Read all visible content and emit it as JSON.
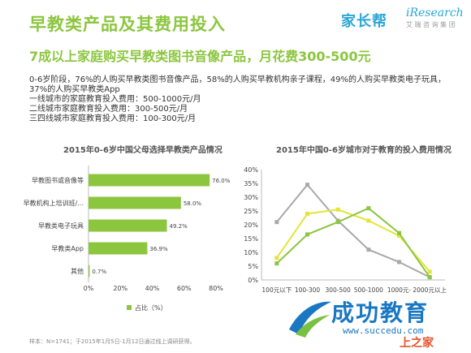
{
  "header": {
    "title": "早教类产品及其费用投入",
    "subtitle": "7成以上家庭购买早教类图书音像产品，月花费300-500元",
    "logo_left": "家长帮",
    "logo_right": "iResearch",
    "logo_right_sub": "艾 瑞 咨 询 集 团"
  },
  "description": [
    "0-6岁阶段，76%的人购买早教类图书音像产品，58%的人购买早教机构亲子课程，49%的人购买早教类电子玩具，37%的人购买早教类App",
    "一线城市的家庭教育投入费用：500-1000元/月",
    "二线城市家庭教育投入费用：300-500元/月",
    "三四线城市家庭教育投入费用：100-300元/月"
  ],
  "source": "样本：N=1741；于2015年1月5日-1月12日通过线上调研获得。",
  "watermark": {
    "text": "成功教育",
    "url": "www.succedu.com",
    "corner": "上之家"
  },
  "chart_data": [
    {
      "type": "bar",
      "orientation": "horizontal",
      "title": "2015年0-6岁中国父母选择早教类产品情况",
      "categories": [
        "早教图书或音像等",
        "早教机构上培训班/...",
        "早教类电子玩具",
        "早教类App",
        "其他"
      ],
      "values": [
        76.0,
        58.0,
        49.2,
        36.9,
        0.7
      ],
      "value_labels": [
        "76.0%",
        "58.0%",
        "49.2%",
        "36.9%",
        "0.7%"
      ],
      "xlim": [
        0,
        80
      ],
      "ticks": [
        "0%",
        "20%",
        "40%",
        "60%",
        "80%"
      ],
      "legend": "占比（%）",
      "color": "#8cc63f",
      "grid": false
    },
    {
      "type": "line",
      "title": "2015年中国0-6岁城市对于教育的投入费用情况",
      "categories": [
        "100元以下",
        "100-300",
        "300-500",
        "500-1000",
        "1000元-",
        "2000元以上"
      ],
      "ylim": [
        0,
        40
      ],
      "ticks": [
        "0%",
        "5%",
        "10%",
        "15%",
        "20%",
        "25%",
        "30%",
        "35%",
        "40%"
      ],
      "grid": false,
      "series": [
        {
          "color": "#a9a9a9",
          "values": [
            21,
            34.5,
            21.5,
            11,
            6.5,
            1
          ]
        },
        {
          "color": "#e1e63a",
          "values": [
            8,
            24,
            25.5,
            21.5,
            16,
            3
          ]
        },
        {
          "color": "#8cc63f",
          "values": [
            6,
            16.5,
            21,
            26,
            17,
            1
          ]
        }
      ]
    }
  ]
}
